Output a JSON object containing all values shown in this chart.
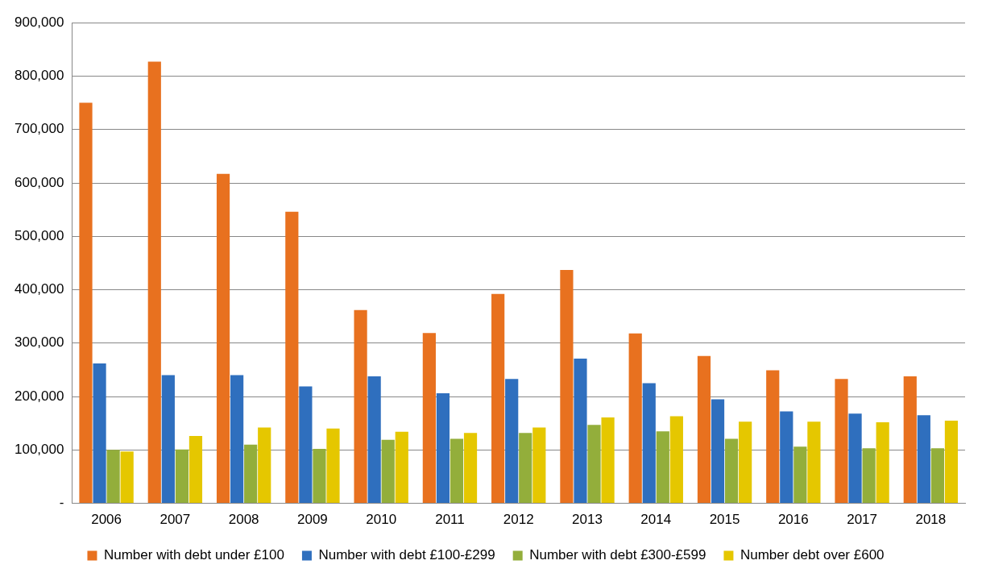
{
  "chart_data": {
    "type": "bar",
    "categories": [
      "2006",
      "2007",
      "2008",
      "2009",
      "2010",
      "2011",
      "2012",
      "2013",
      "2014",
      "2015",
      "2016",
      "2017",
      "2018"
    ],
    "series": [
      {
        "name": "Number with debt under £100",
        "color": "#e8711f",
        "values": [
          750000,
          827000,
          617000,
          546000,
          362000,
          319000,
          392000,
          437000,
          318000,
          276000,
          249000,
          233000,
          238000
        ]
      },
      {
        "name": "Number with debt £100-£299",
        "color": "#2f6fbe",
        "values": [
          262000,
          240000,
          240000,
          219000,
          238000,
          206000,
          233000,
          271000,
          225000,
          195000,
          172000,
          168000,
          165000
        ]
      },
      {
        "name": "Number with debt £300-£599",
        "color": "#93ae3b",
        "values": [
          100000,
          101000,
          110000,
          102000,
          119000,
          121000,
          132000,
          147000,
          135000,
          121000,
          106000,
          103000,
          103000
        ]
      },
      {
        "name": "Number debt over £600",
        "color": "#e5c700",
        "values": [
          97000,
          126000,
          142000,
          140000,
          134000,
          132000,
          142000,
          161000,
          163000,
          153000,
          153000,
          152000,
          155000
        ]
      }
    ],
    "ylim": [
      0,
      900000
    ],
    "yticks": [
      {
        "value": 0,
        "label": "-"
      },
      {
        "value": 100000,
        "label": "100,000"
      },
      {
        "value": 200000,
        "label": "200,000"
      },
      {
        "value": 300000,
        "label": "300,000"
      },
      {
        "value": 400000,
        "label": "400,000"
      },
      {
        "value": 500000,
        "label": "500,000"
      },
      {
        "value": 600000,
        "label": "600,000"
      },
      {
        "value": 700000,
        "label": "700,000"
      },
      {
        "value": 800000,
        "label": "800,000"
      },
      {
        "value": 900000,
        "label": "900,000"
      }
    ],
    "grid": "y",
    "legend": "bottom"
  }
}
